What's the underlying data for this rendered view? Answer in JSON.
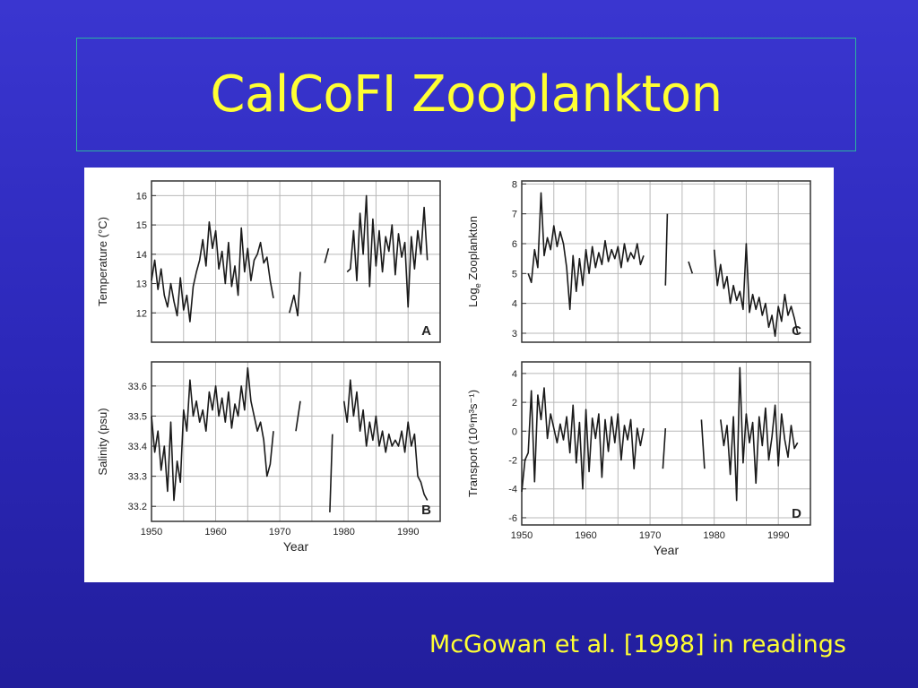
{
  "slide": {
    "title": "CalCoFI Zooplankton",
    "caption": "McGowan et al. [1998] in readings",
    "title_color": "#ffff33",
    "background_color": "#2f2bc0"
  },
  "chart_data": [
    {
      "type": "line",
      "panel": "A",
      "ylabel": "Temperature (°C)",
      "xlabel": "",
      "xlim": [
        1950,
        1995
      ],
      "ylim": [
        11,
        16.5
      ],
      "yticks": [
        "12",
        "13",
        "14",
        "15",
        "16"
      ],
      "xticks": [],
      "grid": true,
      "segments": [
        {
          "x": [
            1950,
            1950.5,
            1951,
            1951.5,
            1952,
            1952.5,
            1953,
            1953.5,
            1954,
            1954.5,
            1955,
            1955.5,
            1956,
            1956.5,
            1957,
            1957.5,
            1958,
            1958.5,
            1959,
            1959.5,
            1960,
            1960.5,
            1961,
            1961.5,
            1962,
            1962.5,
            1963,
            1963.5,
            1964,
            1964.5,
            1965,
            1965.5,
            1966,
            1966.5,
            1967,
            1967.5,
            1968,
            1968.5,
            1969
          ],
          "y": [
            13.1,
            13.8,
            12.8,
            13.5,
            12.6,
            12.2,
            13.0,
            12.4,
            11.9,
            13.2,
            12.1,
            12.6,
            11.7,
            12.9,
            13.4,
            13.8,
            14.5,
            13.6,
            15.1,
            14.2,
            14.8,
            13.5,
            14.1,
            13.0,
            14.4,
            12.9,
            13.6,
            12.6,
            14.9,
            13.4,
            14.2,
            13.1,
            13.8,
            14.0,
            14.4,
            13.7,
            13.9,
            13.1,
            12.5
          ]
        },
        {
          "x": [
            1971.5,
            1972.2,
            1972.8,
            1973.2
          ],
          "y": [
            12.0,
            12.6,
            11.9,
            13.4
          ]
        },
        {
          "x": [
            1977,
            1977.6
          ],
          "y": [
            13.7,
            14.2
          ]
        },
        {
          "x": [
            1980.5,
            1981,
            1981.5,
            1982,
            1982.5,
            1983,
            1983.5,
            1984,
            1984.5,
            1985,
            1985.5,
            1986,
            1986.5,
            1987,
            1987.5,
            1988,
            1988.5,
            1989,
            1989.5,
            1990,
            1990.5,
            1991,
            1991.5,
            1992,
            1992.5,
            1993
          ],
          "y": [
            13.4,
            13.5,
            14.8,
            13.1,
            15.4,
            14.0,
            16.0,
            12.9,
            15.2,
            13.6,
            14.8,
            13.4,
            14.6,
            14.1,
            15.0,
            13.3,
            14.7,
            13.9,
            14.4,
            12.2,
            14.6,
            13.5,
            14.8,
            14.0,
            15.6,
            13.8
          ]
        }
      ]
    },
    {
      "type": "line",
      "panel": "B",
      "ylabel": "Salinity (psu)",
      "xlabel": "Year",
      "xlim": [
        1950,
        1995
      ],
      "ylim": [
        33.15,
        33.68
      ],
      "yticks": [
        "33.2",
        "33.3",
        "33.4",
        "33.5",
        "33.6"
      ],
      "xticks": [
        "1950",
        "1960",
        "1970",
        "1980",
        "1990"
      ],
      "grid": true,
      "segments": [
        {
          "x": [
            1950,
            1950.5,
            1951,
            1951.5,
            1952,
            1952.5,
            1953,
            1953.5,
            1954,
            1954.5,
            1955,
            1955.5,
            1956,
            1956.5,
            1957,
            1957.5,
            1958,
            1958.5,
            1959,
            1959.5,
            1960,
            1960.5,
            1961,
            1961.5,
            1962,
            1962.5,
            1963,
            1963.5,
            1964,
            1964.5,
            1965,
            1965.5,
            1966,
            1966.5,
            1967,
            1967.5,
            1968,
            1968.5,
            1969
          ],
          "y": [
            33.5,
            33.38,
            33.45,
            33.32,
            33.4,
            33.25,
            33.48,
            33.22,
            33.35,
            33.28,
            33.52,
            33.45,
            33.62,
            33.5,
            33.55,
            33.48,
            33.52,
            33.45,
            33.58,
            33.52,
            33.6,
            33.5,
            33.56,
            33.48,
            33.58,
            33.46,
            33.54,
            33.5,
            33.6,
            33.52,
            33.66,
            33.55,
            33.5,
            33.45,
            33.48,
            33.42,
            33.3,
            33.34,
            33.45
          ]
        },
        {
          "x": [
            1972.5,
            1973.2
          ],
          "y": [
            33.45,
            33.55
          ]
        },
        {
          "x": [
            1977.8,
            1978.2
          ],
          "y": [
            33.18,
            33.44
          ]
        },
        {
          "x": [
            1980,
            1980.5,
            1981,
            1981.5,
            1982,
            1982.5,
            1983,
            1983.5,
            1984,
            1984.5,
            1985,
            1985.5,
            1986,
            1986.5,
            1987,
            1987.5,
            1988,
            1988.5,
            1989,
            1989.5,
            1990,
            1990.5,
            1991,
            1991.5,
            1992,
            1992.5,
            1993
          ],
          "y": [
            33.55,
            33.48,
            33.62,
            33.5,
            33.58,
            33.45,
            33.52,
            33.4,
            33.48,
            33.42,
            33.5,
            33.4,
            33.45,
            33.38,
            33.44,
            33.4,
            33.42,
            33.4,
            33.45,
            33.38,
            33.48,
            33.4,
            33.44,
            33.3,
            33.28,
            33.24,
            33.22
          ]
        }
      ]
    },
    {
      "type": "line",
      "panel": "C",
      "ylabel": "Log Zooplankton",
      "ylabel_subscript": "e",
      "xlabel": "",
      "xlim": [
        1950,
        1995
      ],
      "ylim": [
        2.7,
        8.1
      ],
      "yticks": [
        "3",
        "4",
        "5",
        "6",
        "7",
        "8"
      ],
      "xticks": [],
      "grid": true,
      "segments": [
        {
          "x": [
            1951,
            1951.5,
            1952,
            1952.5,
            1953,
            1953.5,
            1954,
            1954.5,
            1955,
            1955.5,
            1956,
            1956.5,
            1957,
            1957.5,
            1958,
            1958.5,
            1959,
            1959.5,
            1960,
            1960.5,
            1961,
            1961.5,
            1962,
            1962.5,
            1963,
            1963.5,
            1964,
            1964.5,
            1965,
            1965.5,
            1966,
            1966.5,
            1967,
            1967.5,
            1968,
            1968.5,
            1969
          ],
          "y": [
            5.0,
            4.7,
            5.8,
            5.2,
            7.7,
            5.6,
            6.2,
            5.8,
            6.6,
            5.9,
            6.4,
            6.0,
            5.2,
            3.8,
            5.6,
            4.4,
            5.5,
            4.6,
            5.8,
            5.0,
            5.9,
            5.2,
            5.7,
            5.3,
            6.1,
            5.4,
            5.8,
            5.5,
            5.9,
            5.2,
            6.0,
            5.4,
            5.7,
            5.5,
            6.0,
            5.3,
            5.6
          ]
        },
        {
          "x": [
            1972.4,
            1972.7
          ],
          "y": [
            4.6,
            7.0
          ]
        },
        {
          "x": [
            1976,
            1976.6
          ],
          "y": [
            5.4,
            5.0
          ]
        },
        {
          "x": [
            1980,
            1980.5,
            1981,
            1981.5,
            1982,
            1982.5,
            1983,
            1983.5,
            1984,
            1984.5,
            1985,
            1985.5,
            1986,
            1986.5,
            1987,
            1987.5,
            1988,
            1988.5,
            1989,
            1989.5,
            1990,
            1990.5,
            1991,
            1991.5,
            1992,
            1992.5,
            1993
          ],
          "y": [
            5.8,
            4.6,
            5.3,
            4.5,
            4.9,
            4.0,
            4.6,
            4.1,
            4.4,
            3.8,
            6.0,
            3.7,
            4.3,
            3.8,
            4.2,
            3.6,
            4.0,
            3.2,
            3.6,
            2.9,
            3.9,
            3.4,
            4.3,
            3.6,
            3.9,
            3.5,
            3.0
          ]
        }
      ]
    },
    {
      "type": "line",
      "panel": "D",
      "ylabel": "Transport (10⁶m³s⁻¹)",
      "xlabel": "Year",
      "xlim": [
        1950,
        1995
      ],
      "ylim": [
        -6.5,
        4.8
      ],
      "yticks": [
        "4",
        "2",
        "0",
        "-2",
        "-4",
        "-6"
      ],
      "xticks": [
        "1950",
        "1960",
        "1970",
        "1980",
        "1990"
      ],
      "grid": true,
      "segments": [
        {
          "x": [
            1950,
            1950.5,
            1951,
            1951.5,
            1952,
            1952.5,
            1953,
            1953.5,
            1954,
            1954.5,
            1955,
            1955.5,
            1956,
            1956.5,
            1957,
            1957.5,
            1958,
            1958.5,
            1959,
            1959.5,
            1960,
            1960.5,
            1961,
            1961.5,
            1962,
            1962.5,
            1963,
            1963.5,
            1964,
            1964.5,
            1965,
            1965.5,
            1966,
            1966.5,
            1967,
            1967.5,
            1968,
            1968.5,
            1969
          ],
          "y": [
            -4.2,
            -2.0,
            -1.5,
            2.8,
            -3.5,
            2.5,
            0.8,
            3.0,
            -0.5,
            1.2,
            0.2,
            -0.8,
            0.5,
            -0.6,
            1.0,
            -1.5,
            1.8,
            -2.2,
            0.6,
            -4.0,
            1.5,
            -2.8,
            0.9,
            -0.5,
            1.2,
            -3.2,
            0.8,
            -1.4,
            1.0,
            -0.8,
            1.2,
            -2.0,
            0.4,
            -0.6,
            0.8,
            -2.6,
            0.2,
            -1.0,
            0.2
          ]
        },
        {
          "x": [
            1972,
            1972.4
          ],
          "y": [
            -2.6,
            0.2
          ]
        },
        {
          "x": [
            1978,
            1978.5
          ],
          "y": [
            0.8,
            -2.6
          ]
        },
        {
          "x": [
            1981,
            1981.5,
            1982,
            1982.5,
            1983,
            1983.5,
            1984,
            1984.5,
            1985,
            1985.5,
            1986,
            1986.5,
            1987,
            1987.5,
            1988,
            1988.5,
            1989,
            1989.5,
            1990,
            1990.5,
            1991,
            1991.5,
            1992,
            1992.5,
            1993
          ],
          "y": [
            0.8,
            -1.0,
            0.4,
            -3.0,
            1.0,
            -4.8,
            4.4,
            -2.2,
            1.2,
            -0.8,
            0.6,
            -3.6,
            1.0,
            -1.0,
            1.6,
            -2.0,
            -0.4,
            1.8,
            -2.4,
            1.2,
            -0.6,
            -1.8,
            0.4,
            -1.2,
            -0.8
          ]
        }
      ]
    }
  ]
}
